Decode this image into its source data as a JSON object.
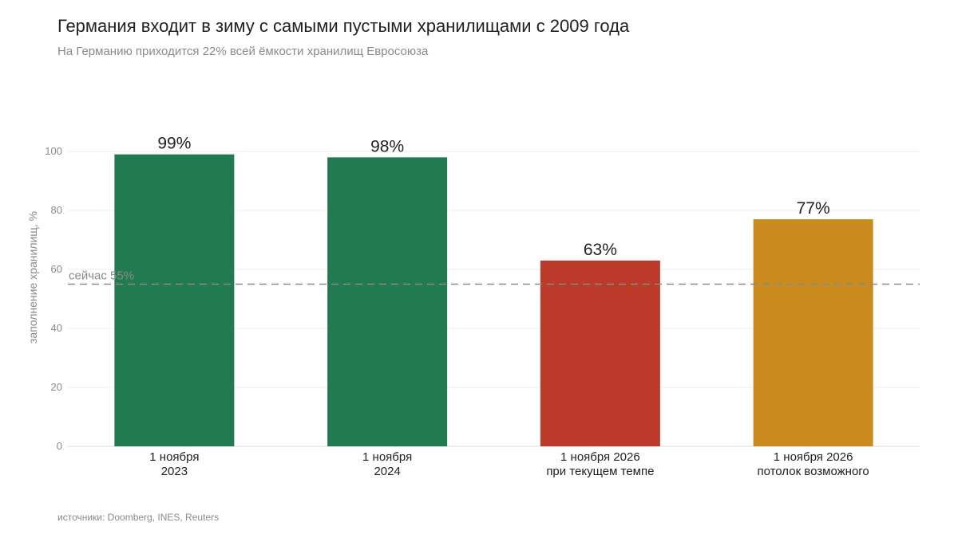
{
  "chart_data": {
    "type": "bar",
    "title": "Германия входит в зиму с самыми пустыми хранилищами с 2009 года",
    "subtitle": "На Германию приходится 22% всей ёмкости хранилищ Евросоюза",
    "ylabel": "заполнение хранилищ, %",
    "ylim": [
      0,
      100
    ],
    "yticks": [
      0,
      20,
      40,
      60,
      80,
      100
    ],
    "grid": true,
    "categories": [
      [
        "1 ноября",
        "2023"
      ],
      [
        "1 ноября",
        "2024"
      ],
      [
        "1 ноября 2026",
        "при текущем темпе"
      ],
      [
        "1 ноября 2026",
        "потолок возможного"
      ]
    ],
    "values": [
      99,
      98,
      63,
      77
    ],
    "data_labels": [
      "99%",
      "98%",
      "63%",
      "77%"
    ],
    "colors": [
      "#217a50",
      "#217a50",
      "#bc3a2a",
      "#c98a1e"
    ],
    "reference_line": {
      "value": 55,
      "label": "сейчас 55%",
      "color": "#8a8a8a",
      "style": "dashed"
    },
    "source": "источники: Doomberg, INES, Reuters"
  }
}
